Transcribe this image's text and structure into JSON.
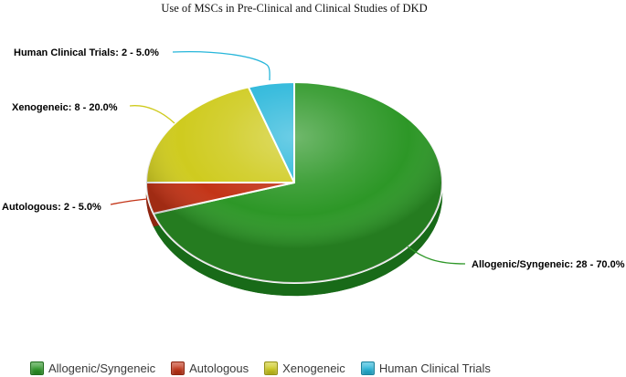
{
  "figure": {
    "background": "#ffffff"
  },
  "chart_data": {
    "type": "pie",
    "title": "Use of MSCs in Pre-Clinical and Clinical Studies of DKD",
    "categories": [
      "Allogenic/Syngeneic",
      "Autologous",
      "Xenogeneic",
      "Human Clinical Trials"
    ],
    "counts": [
      28,
      2,
      8,
      2
    ],
    "values": [
      70.0,
      5.0,
      20.0,
      5.0
    ],
    "value_unit": "%",
    "start_angle_deg": 0,
    "direction": "clockwise",
    "effect_3d": true,
    "colors": [
      "#2d9727",
      "#c33417",
      "#cfcb1f",
      "#27b6da"
    ],
    "colors_dark": [
      "#186a18",
      "#8e2510",
      "#95900f",
      "#0f7da1"
    ],
    "labels": [
      "Allogenic/Syngeneic: 28 - 70.0%",
      "Autologous: 2 - 5.0%",
      "Xenogeneic: 8 - 20.0%",
      "Human Clinical Trials: 2 - 5.0%"
    ],
    "legend_position": "bottom"
  }
}
